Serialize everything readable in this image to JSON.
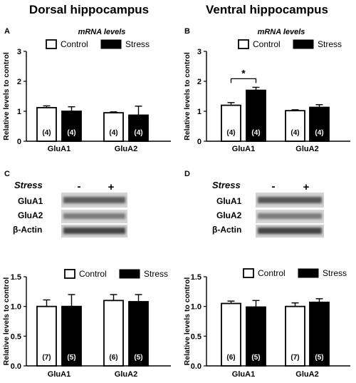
{
  "headers": {
    "left": "Dorsal hippocampus",
    "right": "Ventral hippocampus"
  },
  "blots": {
    "stress_label": "Stress",
    "minus": "-",
    "plus": "+",
    "rows": [
      "GluA1",
      "GluA2",
      "β-Actin"
    ]
  },
  "chart_data": [
    {
      "panel": "A",
      "type": "bar",
      "title": "mRNA levels",
      "categories": [
        "GluA1",
        "GluA2"
      ],
      "ylabel": "Relative levels to control",
      "ylim": [
        0,
        3
      ],
      "yticks": [
        "0",
        "1",
        "2",
        "3"
      ],
      "series": [
        {
          "name": "Control",
          "values": [
            1.12,
            0.95
          ],
          "errors": [
            0.06,
            0.03
          ],
          "n": [
            "(4)",
            "(4)"
          ]
        },
        {
          "name": "Stress",
          "values": [
            1.0,
            0.87
          ],
          "errors": [
            0.15,
            0.3
          ],
          "n": [
            "(4)",
            "(4)"
          ]
        }
      ],
      "legend": "top-right"
    },
    {
      "panel": "B",
      "type": "bar",
      "title": "mRNA levels",
      "categories": [
        "GluA1",
        "GluA2"
      ],
      "ylabel": "Relative levels to control",
      "ylim": [
        0,
        3
      ],
      "yticks": [
        "0",
        "1",
        "2",
        "3"
      ],
      "series": [
        {
          "name": "Control",
          "values": [
            1.2,
            1.02
          ],
          "errors": [
            0.09,
            0.03
          ],
          "n": [
            "(4)",
            "(4)"
          ]
        },
        {
          "name": "Stress",
          "values": [
            1.7,
            1.13
          ],
          "errors": [
            0.1,
            0.09
          ],
          "n": [
            "(4)",
            "(4)"
          ]
        }
      ],
      "annotation": "*",
      "legend": "top-right"
    },
    {
      "panel": "C",
      "type": "bar",
      "categories": [
        "GluA1",
        "GluA2"
      ],
      "ylabel": "Relative levels to control",
      "ylim": [
        0,
        1.5
      ],
      "yticks": [
        "0.0",
        "0.5",
        "1.0",
        "1.5"
      ],
      "series": [
        {
          "name": "Control",
          "values": [
            1.0,
            1.1
          ],
          "errors": [
            0.11,
            0.1
          ],
          "n": [
            "(7)",
            "(6)"
          ]
        },
        {
          "name": "Stress",
          "values": [
            1.0,
            1.08
          ],
          "errors": [
            0.2,
            0.12
          ],
          "n": [
            "(5)",
            "(5)"
          ]
        }
      ],
      "legend": "top-right"
    },
    {
      "panel": "D",
      "type": "bar",
      "categories": [
        "GluA1",
        "GluA2"
      ],
      "ylabel": "Relative levels to control",
      "ylim": [
        0,
        1.5
      ],
      "yticks": [
        "0.0",
        "0.5",
        "1.0",
        "1.5"
      ],
      "series": [
        {
          "name": "Control",
          "values": [
            1.05,
            1.0
          ],
          "errors": [
            0.04,
            0.06
          ],
          "n": [
            "(6)",
            "(7)"
          ]
        },
        {
          "name": "Stress",
          "values": [
            0.99,
            1.07
          ],
          "errors": [
            0.11,
            0.06
          ],
          "n": [
            "(5)",
            "(5)"
          ]
        }
      ],
      "legend": "top-right"
    }
  ]
}
